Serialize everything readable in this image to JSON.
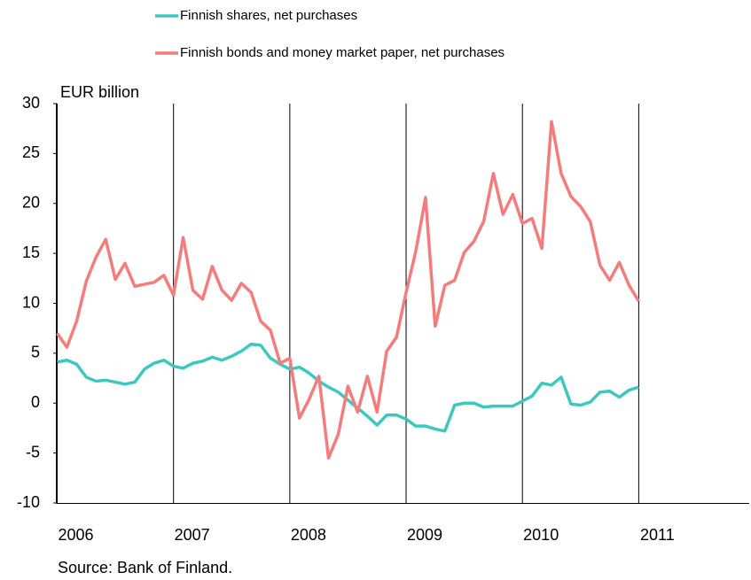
{
  "chart_data": {
    "type": "line",
    "y_label": "EUR billion",
    "source": "Source: Bank of Finland.",
    "x": [
      2006,
      2006.083,
      2006.167,
      2006.25,
      2006.333,
      2006.417,
      2006.5,
      2006.583,
      2006.667,
      2006.75,
      2006.833,
      2006.917,
      2007,
      2007.083,
      2007.167,
      2007.25,
      2007.333,
      2007.417,
      2007.5,
      2007.583,
      2007.667,
      2007.75,
      2007.833,
      2007.917,
      2008,
      2008.083,
      2008.167,
      2008.25,
      2008.333,
      2008.417,
      2008.5,
      2008.583,
      2008.667,
      2008.75,
      2008.833,
      2008.917,
      2009,
      2009.083,
      2009.167,
      2009.25,
      2009.333,
      2009.417,
      2009.5,
      2009.583,
      2009.667,
      2009.75,
      2009.833,
      2009.917,
      2010,
      2010.083,
      2010.167,
      2010.25,
      2010.333,
      2010.417,
      2010.5,
      2010.583,
      2010.667,
      2010.75,
      2010.833,
      2010.917,
      2011
    ],
    "series": [
      {
        "name": "Finnish shares, net purchases",
        "color": "#3cc8c0",
        "values": [
          4.1,
          4.3,
          3.9,
          2.6,
          2.2,
          2.3,
          2.1,
          1.9,
          2.1,
          3.4,
          4.0,
          4.3,
          3.7,
          3.5,
          4.0,
          4.2,
          4.6,
          4.3,
          4.7,
          5.2,
          5.9,
          5.8,
          4.5,
          3.9,
          3.4,
          3.6,
          3.0,
          2.2,
          1.6,
          1.1,
          0.3,
          -0.5,
          -1.3,
          -2.2,
          -1.2,
          -1.2,
          -1.6,
          -2.3,
          -2.3,
          -2.6,
          -2.8,
          -0.2,
          0.0,
          0.0,
          -0.4,
          -0.3,
          -0.3,
          -0.3,
          0.2,
          0.7,
          2.0,
          1.8,
          2.6,
          -0.1,
          -0.2,
          0.1,
          1.1,
          1.2,
          0.6,
          1.3,
          1.6
        ]
      },
      {
        "name": "Finnish bonds and money market paper, net purchases",
        "color": "#f47c7c",
        "values": [
          7.0,
          5.6,
          8.2,
          12.2,
          14.6,
          16.4,
          12.4,
          14.0,
          11.7,
          11.9,
          12.1,
          12.8,
          10.8,
          16.6,
          11.3,
          10.4,
          13.7,
          11.3,
          10.3,
          12.0,
          11.1,
          8.2,
          7.3,
          4.0,
          4.5,
          -1.5,
          0.4,
          2.7,
          -5.5,
          -3.1,
          1.7,
          -0.9,
          2.7,
          -0.9,
          5.2,
          6.6,
          11.1,
          15.2,
          20.6,
          7.7,
          11.8,
          12.3,
          15.1,
          16.2,
          18.2,
          23.0,
          18.9,
          20.9,
          18.0,
          18.5,
          15.5,
          28.2,
          23.0,
          20.7,
          19.7,
          18.2,
          13.8,
          12.3,
          14.1,
          11.8,
          10.2
        ]
      }
    ],
    "xlim": [
      2006,
      2011.95
    ],
    "xticks": [
      2006,
      2007,
      2008,
      2009,
      2010,
      2011
    ],
    "ylim": [
      -10,
      30
    ],
    "yticks": [
      -10,
      -5,
      0,
      5,
      10,
      15,
      20,
      25,
      30
    ],
    "grid": "x",
    "legend": "top"
  }
}
